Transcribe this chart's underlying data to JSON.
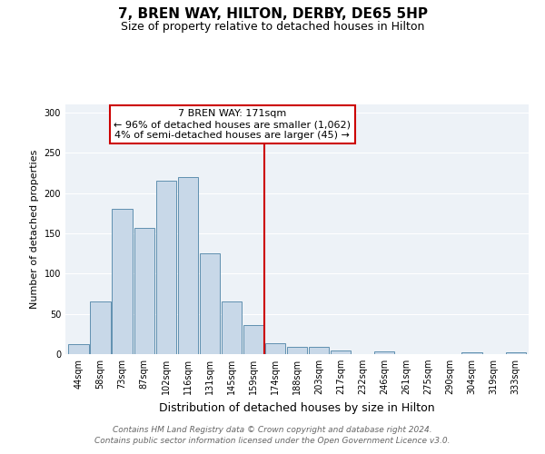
{
  "title": "7, BREN WAY, HILTON, DERBY, DE65 5HP",
  "subtitle": "Size of property relative to detached houses in Hilton",
  "xlabel": "Distribution of detached houses by size in Hilton",
  "ylabel": "Number of detached properties",
  "bin_labels": [
    "44sqm",
    "58sqm",
    "73sqm",
    "87sqm",
    "102sqm",
    "116sqm",
    "131sqm",
    "145sqm",
    "159sqm",
    "174sqm",
    "188sqm",
    "203sqm",
    "217sqm",
    "232sqm",
    "246sqm",
    "261sqm",
    "275sqm",
    "290sqm",
    "304sqm",
    "319sqm",
    "333sqm"
  ],
  "bar_heights": [
    12,
    65,
    180,
    157,
    215,
    220,
    125,
    65,
    36,
    13,
    9,
    9,
    4,
    0,
    3,
    0,
    0,
    0,
    2,
    0,
    2
  ],
  "bar_color": "#c8d8e8",
  "bar_edge_color": "#6090b0",
  "vline_color": "#cc0000",
  "ylim": [
    0,
    310
  ],
  "yticks": [
    0,
    50,
    100,
    150,
    200,
    250,
    300
  ],
  "annotation_title": "7 BREN WAY: 171sqm",
  "annotation_line1": "← 96% of detached houses are smaller (1,062)",
  "annotation_line2": "4% of semi-detached houses are larger (45) →",
  "annotation_box_color": "#cc0000",
  "footnote1": "Contains HM Land Registry data © Crown copyright and database right 2024.",
  "footnote2": "Contains public sector information licensed under the Open Government Licence v3.0.",
  "bg_color": "#edf2f7",
  "title_fontsize": 11,
  "subtitle_fontsize": 9,
  "xlabel_fontsize": 9,
  "ylabel_fontsize": 8,
  "annotation_fontsize": 8,
  "footnote_fontsize": 6.5,
  "tick_fontsize": 7
}
